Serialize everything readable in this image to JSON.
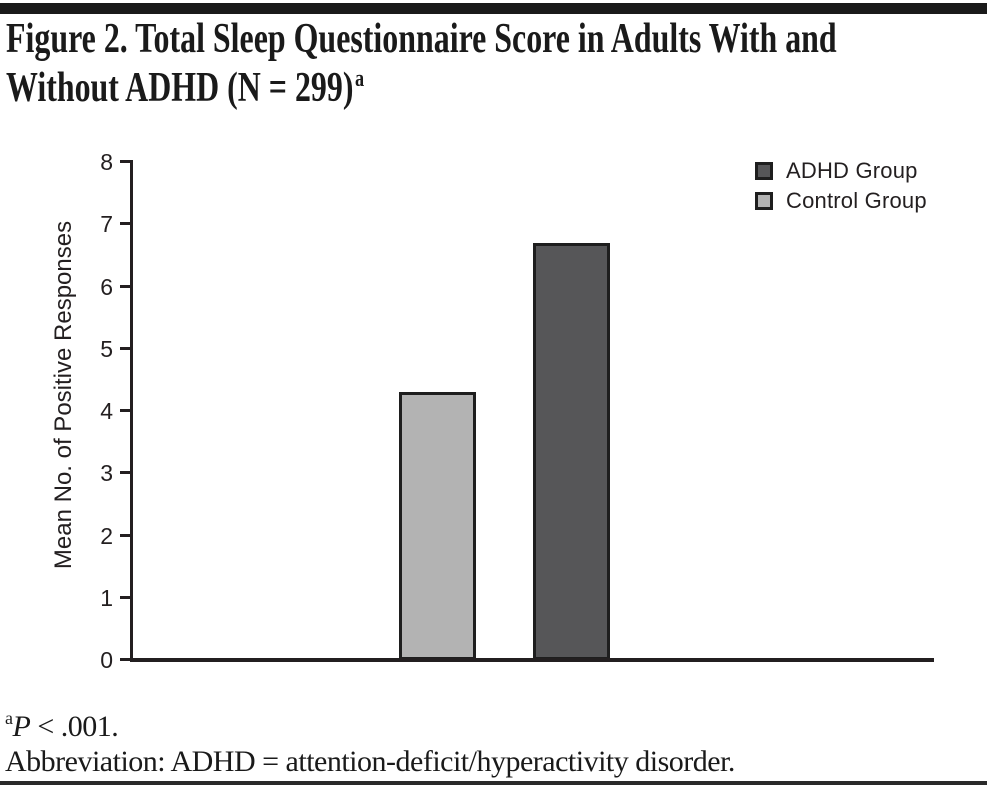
{
  "figure": {
    "title_line1": "Figure 2. Total Sleep Questionnaire Score in Adults With and",
    "title_line2": "Without ADHD (N = 299)",
    "title_footnote_marker": "a"
  },
  "chart_data": {
    "type": "bar",
    "title": "Figure 2. Total Sleep Questionnaire Score in Adults With and Without ADHD (N = 299)",
    "xlabel": "",
    "ylabel": "Mean No. of Positive Responses",
    "ylim": [
      0,
      8
    ],
    "ytick_step": 1,
    "ytick_labels": [
      "0",
      "1",
      "2",
      "3",
      "4",
      "5",
      "6",
      "7",
      "8"
    ],
    "grid": false,
    "categories": [
      "Control Group",
      "ADHD Group"
    ],
    "series": [
      {
        "name": "Control Group",
        "value": 4.3,
        "color": "#b3b3b3"
      },
      {
        "name": "ADHD Group",
        "value": 6.7,
        "color": "#565658"
      }
    ],
    "bar_border_color": "#1e1e1e",
    "axis_color": "#231f20",
    "legend_position": "top-right",
    "legend": [
      {
        "label": "ADHD Group",
        "color": "#565658"
      },
      {
        "label": "Control Group",
        "color": "#b3b3b3"
      }
    ]
  },
  "footnotes": {
    "p_line": {
      "sup": "a",
      "stat": "P",
      "rest": " < .001."
    },
    "abbreviation": "Abbreviation: ADHD = attention-deficit/hyperactivity disorder."
  }
}
